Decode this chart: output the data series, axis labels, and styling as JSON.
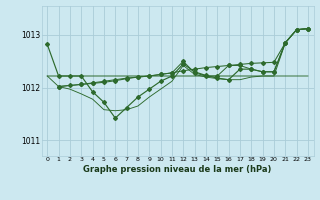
{
  "background_color": "#cce8f0",
  "grid_color": "#aaccd8",
  "line_color": "#2d6a2d",
  "title": "Graphe pression niveau de la mer (hPa)",
  "ylim": [
    1010.7,
    1013.55
  ],
  "xlim": [
    -0.5,
    23.5
  ],
  "yticks": [
    1011,
    1012,
    1013
  ],
  "xticks": [
    0,
    1,
    2,
    3,
    4,
    5,
    6,
    7,
    8,
    9,
    10,
    11,
    12,
    13,
    14,
    15,
    16,
    17,
    18,
    19,
    20,
    21,
    22,
    23
  ],
  "series_A_x": [
    0,
    1,
    2,
    3,
    4,
    5,
    6,
    7,
    8,
    9,
    10,
    11,
    12,
    13,
    14,
    15,
    16,
    17,
    18,
    19,
    20,
    21,
    22,
    23
  ],
  "series_A_y": [
    1012.82,
    1012.22,
    1012.22,
    1012.22,
    1011.92,
    1011.72,
    1011.42,
    1011.62,
    1011.82,
    1011.97,
    1012.12,
    1012.22,
    1012.45,
    1012.3,
    1012.23,
    1012.18,
    1012.15,
    1012.35,
    1012.35,
    1012.3,
    1012.3,
    1012.85,
    1013.1,
    1013.12
  ],
  "series_B_x": [
    0,
    1,
    2,
    3,
    4,
    5,
    6,
    7,
    8,
    9,
    10,
    11,
    12,
    13,
    14,
    15,
    16,
    17,
    18,
    19,
    20,
    21,
    22,
    23
  ],
  "series_B_y": [
    1012.22,
    1012.22,
    1012.22,
    1012.22,
    1012.22,
    1012.22,
    1012.22,
    1012.22,
    1012.22,
    1012.22,
    1012.22,
    1012.22,
    1012.22,
    1012.22,
    1012.22,
    1012.22,
    1012.22,
    1012.22,
    1012.22,
    1012.22,
    1012.22,
    1012.85,
    1013.1,
    1013.12
  ],
  "series_C_x": [
    1,
    2,
    3,
    4,
    5,
    6,
    7,
    8,
    9,
    10,
    11,
    12,
    13,
    14,
    15,
    16,
    17,
    18,
    19,
    20,
    21,
    22,
    23
  ],
  "series_C_y": [
    1012.02,
    1012.04,
    1012.06,
    1012.08,
    1012.1,
    1012.13,
    1012.17,
    1012.2,
    1012.22,
    1012.25,
    1012.28,
    1012.32,
    1012.35,
    1012.38,
    1012.4,
    1012.42,
    1012.44,
    1012.46,
    1012.47,
    1012.48,
    1012.85,
    1013.1,
    1013.12
  ],
  "series_D_x": [
    1,
    3,
    4,
    5,
    6,
    7,
    8,
    9,
    10,
    11,
    12,
    13,
    14,
    15,
    16,
    17,
    18,
    19,
    20,
    21,
    22,
    23
  ],
  "series_D_y": [
    1012.02,
    1012.06,
    1012.09,
    1012.12,
    1012.15,
    1012.18,
    1012.2,
    1012.22,
    1012.25,
    1012.28,
    1012.5,
    1012.28,
    1012.22,
    1012.22,
    1012.42,
    1012.42,
    1012.35,
    1012.3,
    1012.3,
    1012.85,
    1013.1,
    1013.12
  ],
  "series_E_x": [
    0,
    1,
    2,
    3,
    4,
    5,
    6,
    7,
    8,
    9,
    10,
    11,
    12,
    13,
    14,
    15,
    16,
    17,
    18,
    19,
    20,
    21,
    22,
    23
  ],
  "series_E_y": [
    1012.22,
    1012.02,
    1011.97,
    1011.88,
    1011.78,
    1011.58,
    1011.56,
    1011.58,
    1011.65,
    1011.82,
    1011.97,
    1012.12,
    1012.42,
    1012.25,
    1012.2,
    1012.17,
    1012.15,
    1012.15,
    1012.2,
    1012.22,
    1012.22,
    1012.22,
    1012.22,
    1012.22
  ]
}
